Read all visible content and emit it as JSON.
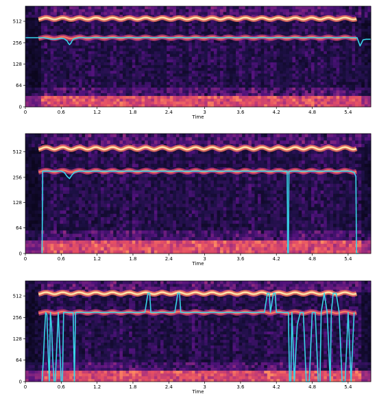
{
  "chart_data": [
    {
      "type": "heatmap",
      "variant": "spectrogram-with-pitch-track",
      "xlabel": "Time",
      "ylabel": "",
      "x_ticks": [
        "0",
        "0.6",
        "1.2",
        "1.8",
        "2.4",
        "3",
        "3.6",
        "4.2",
        "4.8",
        "5.4"
      ],
      "x_tick_values": [
        0,
        0.6,
        1.2,
        1.8,
        2.4,
        3,
        3.6,
        4.2,
        4.8,
        5.4
      ],
      "y_ticks": [
        "0",
        "64",
        "128",
        "256",
        "512"
      ],
      "y_tick_values": [
        0,
        64,
        128,
        256,
        512
      ],
      "xlim": [
        0,
        5.78
      ],
      "y_scale": "log2-like",
      "colormap": "magma",
      "track_color": "#39d5ea",
      "series": [
        {
          "x": [
            0.0,
            0.05,
            0.1,
            0.15,
            0.2,
            0.25,
            0.3,
            0.35,
            0.4,
            0.45,
            0.5,
            0.55,
            0.6,
            0.65,
            0.7,
            0.72,
            0.74,
            0.76,
            0.78,
            0.8,
            0.85,
            0.9,
            1.0,
            1.2,
            1.4,
            1.6,
            1.8,
            2.0,
            2.2,
            2.4,
            2.6,
            2.8,
            3.0,
            3.2,
            3.4,
            3.6,
            3.8,
            4.0,
            4.2,
            4.4,
            4.6,
            4.8,
            5.0,
            5.2,
            5.4,
            5.5,
            5.55,
            5.6,
            5.65,
            5.7,
            5.78
          ],
          "y": [
            300,
            300,
            300,
            300,
            300,
            300,
            300,
            295,
            290,
            285,
            285,
            290,
            295,
            290,
            270,
            250,
            240,
            250,
            270,
            285,
            295,
            300,
            300,
            300,
            300,
            300,
            300,
            300,
            300,
            300,
            300,
            300,
            300,
            300,
            300,
            300,
            300,
            300,
            300,
            300,
            300,
            300,
            300,
            300,
            300,
            300,
            300,
            230,
            280,
            285,
            285
          ]
        }
      ]
    },
    {
      "type": "heatmap",
      "variant": "spectrogram-with-pitch-track",
      "xlabel": "Time",
      "ylabel": "",
      "x_ticks": [
        "0",
        "0.6",
        "1.2",
        "1.8",
        "2.4",
        "3",
        "3.6",
        "4.2",
        "4.8",
        "5.4"
      ],
      "x_tick_values": [
        0,
        0.6,
        1.2,
        1.8,
        2.4,
        3,
        3.6,
        4.2,
        4.8,
        5.4
      ],
      "y_ticks": [
        "0",
        "64",
        "128",
        "256",
        "512"
      ],
      "y_tick_values": [
        0,
        64,
        128,
        256,
        512
      ],
      "xlim": [
        0,
        5.78
      ],
      "y_scale": "log2-like",
      "colormap": "magma",
      "track_color": "#39d5ea",
      "series": [
        {
          "x": [
            0.0,
            0.05,
            0.1,
            0.15,
            0.2,
            0.25,
            0.28,
            0.29,
            0.3,
            0.35,
            0.4,
            0.5,
            0.6,
            0.65,
            0.7,
            0.74,
            0.78,
            0.82,
            0.9,
            1.0,
            1.5,
            2.0,
            2.5,
            3.0,
            3.5,
            4.0,
            4.3,
            4.38,
            4.39,
            4.4,
            4.41,
            4.45,
            4.6,
            5.0,
            5.3,
            5.45,
            5.5,
            5.53,
            5.54,
            5.55,
            5.58
          ],
          "y": [
            null,
            null,
            null,
            null,
            null,
            null,
            0,
            300,
            300,
            300,
            300,
            300,
            300,
            290,
            260,
            245,
            270,
            290,
            300,
            300,
            300,
            300,
            300,
            300,
            300,
            300,
            300,
            300,
            0,
            0,
            300,
            300,
            300,
            300,
            300,
            300,
            290,
            260,
            0,
            0,
            0
          ]
        }
      ]
    },
    {
      "type": "heatmap",
      "variant": "spectrogram-with-pitch-track",
      "xlabel": "Time",
      "ylabel": "",
      "x_ticks": [
        "0",
        "0.6",
        "1.2",
        "1.8",
        "2.4",
        "3",
        "3.6",
        "4.2",
        "4.8",
        "5.4"
      ],
      "x_tick_values": [
        0,
        0.6,
        1.2,
        1.8,
        2.4,
        3,
        3.6,
        4.2,
        4.8,
        5.4
      ],
      "y_ticks": [
        "0",
        "64",
        "128",
        "256",
        "512"
      ],
      "y_tick_values": [
        0,
        64,
        128,
        256,
        512
      ],
      "xlim": [
        0,
        5.78
      ],
      "y_scale": "log2-like",
      "colormap": "magma",
      "track_color": "#39d5ea",
      "series": [
        {
          "x": [
            0.28,
            0.3,
            0.32,
            0.34,
            0.36,
            0.38,
            0.4,
            0.42,
            0.44,
            0.46,
            0.48,
            0.5,
            0.55,
            0.6,
            0.62,
            0.64,
            0.66,
            0.7,
            0.75,
            0.8,
            0.82,
            0.84,
            0.9,
            1.2,
            1.5,
            1.8,
            2.0,
            2.05,
            2.08,
            2.1,
            2.2,
            2.4,
            2.5,
            2.55,
            2.58,
            2.6,
            3.0,
            3.6,
            4.0,
            4.05,
            4.08,
            4.1,
            4.15,
            4.18,
            4.2,
            4.25,
            4.3,
            4.4,
            4.42,
            4.44,
            4.46,
            4.5,
            4.55,
            4.6,
            4.65,
            4.7,
            4.75,
            4.8,
            4.85,
            4.9,
            4.93,
            4.95,
            5.0,
            5.05,
            5.1,
            5.12,
            5.15,
            5.2,
            5.25,
            5.3,
            5.35,
            5.4,
            5.45,
            5.5
          ],
          "y": [
            0,
            64,
            150,
            300,
            280,
            90,
            0,
            300,
            180,
            60,
            0,
            0,
            300,
            0,
            0,
            300,
            300,
            300,
            300,
            300,
            0,
            300,
            300,
            300,
            300,
            300,
            300,
            560,
            560,
            300,
            300,
            300,
            300,
            560,
            560,
            300,
            300,
            300,
            300,
            560,
            560,
            300,
            560,
            560,
            300,
            300,
            300,
            300,
            0,
            0,
            300,
            0,
            200,
            300,
            300,
            0,
            0,
            300,
            300,
            0,
            0,
            300,
            560,
            300,
            0,
            300,
            560,
            560,
            300,
            0,
            0,
            300,
            0,
            300
          ]
        }
      ]
    }
  ]
}
